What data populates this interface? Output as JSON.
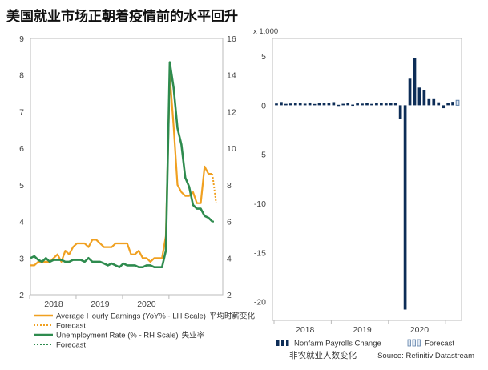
{
  "page": {
    "title": "美国就业市场正朝着疫情前的水平回升",
    "source": "Source: Refinitiv Datastream"
  },
  "colors": {
    "earnings": "#f0a020",
    "unemployment": "#2e8b4e",
    "payrolls": "#0d2d57",
    "axis": "#bbbbbb",
    "grid": "#e6e6e6"
  },
  "chart_data": [
    {
      "type": "line",
      "x_ticks": [
        "2018",
        "2019",
        "2020"
      ],
      "ylim_left": [
        2,
        9
      ],
      "yticks_left": [
        2,
        3,
        4,
        5,
        6,
        7,
        8,
        9
      ],
      "ylim_right": [
        2,
        16
      ],
      "yticks_right": [
        2,
        4,
        6,
        8,
        10,
        12,
        14,
        16
      ],
      "series": [
        {
          "name": "Average Hourly Earnings (YoY% - LH Scale)",
          "axis": "left",
          "values": [
            2.8,
            2.8,
            2.9,
            2.9,
            2.9,
            2.9,
            3.0,
            3.1,
            2.9,
            3.2,
            3.1,
            3.3,
            3.4,
            3.4,
            3.4,
            3.3,
            3.5,
            3.5,
            3.4,
            3.3,
            3.3,
            3.3,
            3.4,
            3.4,
            3.4,
            3.4,
            3.1,
            3.1,
            3.2,
            3.0,
            3.0,
            2.9,
            3.0,
            3.0,
            3.0,
            3.6,
            8.0,
            6.6,
            5.0,
            4.8,
            4.7,
            4.7,
            4.8,
            4.5,
            4.5,
            5.5,
            5.3,
            5.3
          ]
        },
        {
          "name": "Forecast",
          "axis": "left",
          "values": [
            5.3,
            4.5
          ]
        },
        {
          "name": "Unemployment Rate (% - RH Scale)",
          "axis": "right",
          "values": [
            4.0,
            4.1,
            3.9,
            3.8,
            4.0,
            3.8,
            3.9,
            3.9,
            3.9,
            3.8,
            3.8,
            3.9,
            3.9,
            3.9,
            3.8,
            4.0,
            3.8,
            3.8,
            3.8,
            3.7,
            3.6,
            3.7,
            3.6,
            3.5,
            3.7,
            3.6,
            3.6,
            3.6,
            3.5,
            3.5,
            3.6,
            3.6,
            3.5,
            3.5,
            3.5,
            4.4,
            14.7,
            13.3,
            11.1,
            10.2,
            8.4,
            7.9,
            6.9,
            6.7,
            6.7,
            6.3,
            6.2,
            6.0
          ]
        },
        {
          "name": "Forecast",
          "axis": "right",
          "values": [
            6.0,
            6.0
          ]
        }
      ],
      "side_labels": {
        "earnings": "平均时薪变化",
        "unemployment": "失业率"
      }
    },
    {
      "type": "bar",
      "unit_label": "x 1,000",
      "x_ticks": [
        "2018",
        "2019",
        "2020"
      ],
      "ylim": [
        -20,
        5
      ],
      "yticks": [
        5,
        0,
        -5,
        -10,
        -15,
        -20
      ],
      "series": [
        {
          "name": "Nonfarm Payrolls Change",
          "values": [
            0.18,
            0.33,
            0.14,
            0.18,
            0.21,
            0.23,
            0.16,
            0.28,
            0.13,
            0.26,
            0.2,
            0.26,
            0.32,
            0.05,
            0.15,
            0.26,
            0.07,
            0.19,
            0.17,
            0.21,
            0.14,
            0.2,
            0.26,
            0.19,
            0.21,
            0.25,
            -1.4,
            -20.8,
            2.7,
            4.8,
            1.8,
            1.5,
            0.7,
            0.7,
            0.3,
            -0.3,
            0.2,
            0.35
          ]
        },
        {
          "name": "Forecast",
          "values": [
            0.5
          ]
        }
      ],
      "caption": "非农就业人数变化"
    }
  ]
}
